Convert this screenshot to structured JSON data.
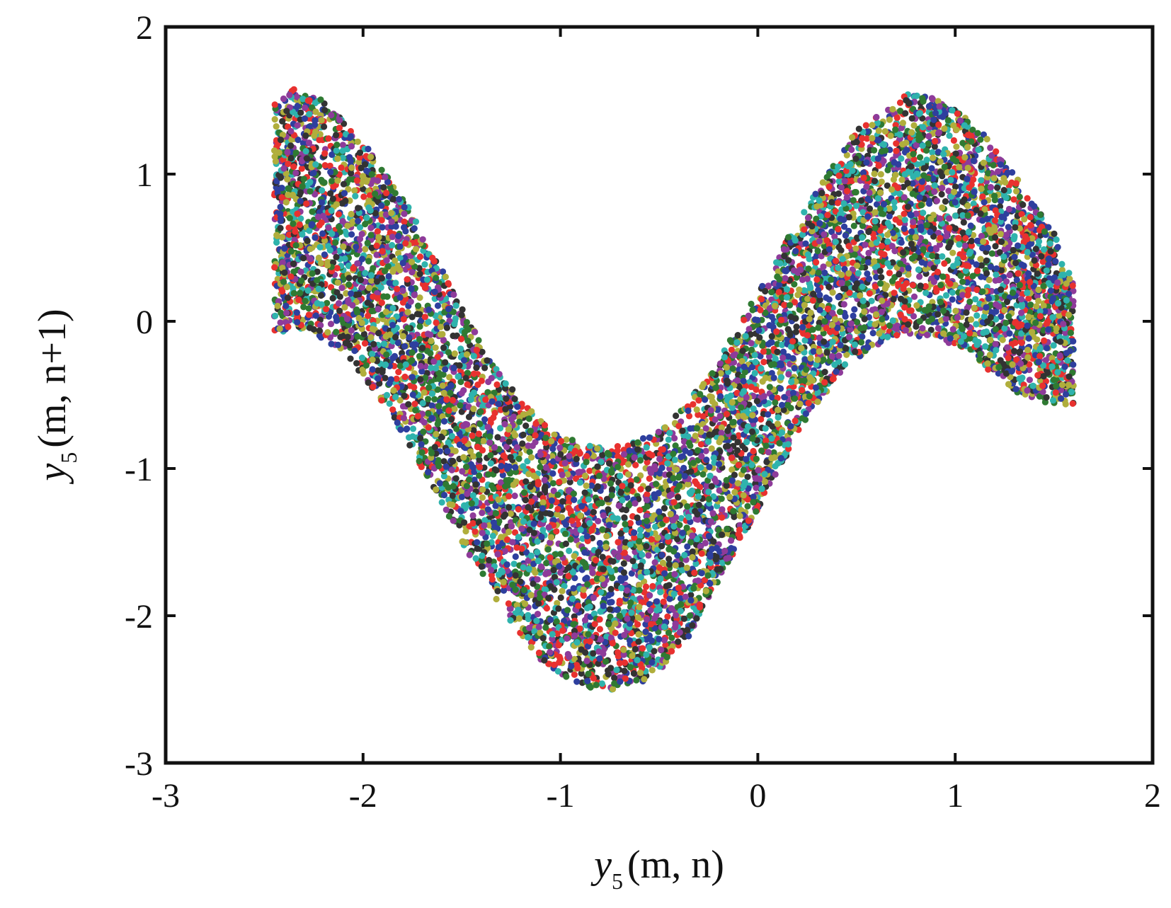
{
  "chart_data": {
    "type": "scatter",
    "title": "",
    "xlabel": {
      "var": "y",
      "sub": "5",
      "args": "(m, n)"
    },
    "ylabel": {
      "var": "y",
      "sub": "5",
      "args": "(m, n+1)"
    },
    "xlim": [
      -3,
      2
    ],
    "ylim": [
      -3,
      2
    ],
    "xticks": [
      "-3",
      "-2",
      "-1",
      "0",
      "1",
      "2"
    ],
    "yticks": [
      "-3",
      "-2",
      "-1",
      "0",
      "1",
      "2"
    ],
    "grid": false,
    "legend": "none",
    "marker_colors": [
      "#e8312f",
      "#2e3f9e",
      "#2f7a32",
      "#2fb3ad",
      "#b0ae3c",
      "#8e3b9a",
      "#333333"
    ],
    "point_cloud": {
      "count": 9000,
      "x_range": [
        -2.45,
        1.6
      ],
      "upper_boundary": [
        [
          -2.45,
          1.48
        ],
        [
          -2.35,
          1.58
        ],
        [
          -2.2,
          1.52
        ],
        [
          -2.0,
          1.22
        ],
        [
          -1.8,
          0.85
        ],
        [
          -1.6,
          0.35
        ],
        [
          -1.4,
          -0.15
        ],
        [
          -1.2,
          -0.55
        ],
        [
          -1.0,
          -0.78
        ],
        [
          -0.75,
          -0.86
        ],
        [
          -0.5,
          -0.75
        ],
        [
          -0.25,
          -0.38
        ],
        [
          0.0,
          0.2
        ],
        [
          0.25,
          0.8
        ],
        [
          0.5,
          1.3
        ],
        [
          0.75,
          1.55
        ],
        [
          0.9,
          1.52
        ],
        [
          1.1,
          1.35
        ],
        [
          1.3,
          1.0
        ],
        [
          1.5,
          0.6
        ],
        [
          1.6,
          0.25
        ]
      ],
      "lower_boundary": [
        [
          -2.45,
          -0.08
        ],
        [
          -2.3,
          -0.05
        ],
        [
          -2.1,
          -0.2
        ],
        [
          -1.9,
          -0.55
        ],
        [
          -1.7,
          -1.0
        ],
        [
          -1.5,
          -1.5
        ],
        [
          -1.3,
          -1.95
        ],
        [
          -1.1,
          -2.3
        ],
        [
          -0.9,
          -2.48
        ],
        [
          -0.75,
          -2.52
        ],
        [
          -0.55,
          -2.45
        ],
        [
          -0.35,
          -2.15
        ],
        [
          -0.15,
          -1.65
        ],
        [
          0.05,
          -1.15
        ],
        [
          0.25,
          -0.65
        ],
        [
          0.45,
          -0.3
        ],
        [
          0.65,
          -0.12
        ],
        [
          0.9,
          -0.1
        ],
        [
          1.1,
          -0.25
        ],
        [
          1.3,
          -0.48
        ],
        [
          1.45,
          -0.55
        ],
        [
          1.6,
          -0.58
        ]
      ]
    }
  }
}
